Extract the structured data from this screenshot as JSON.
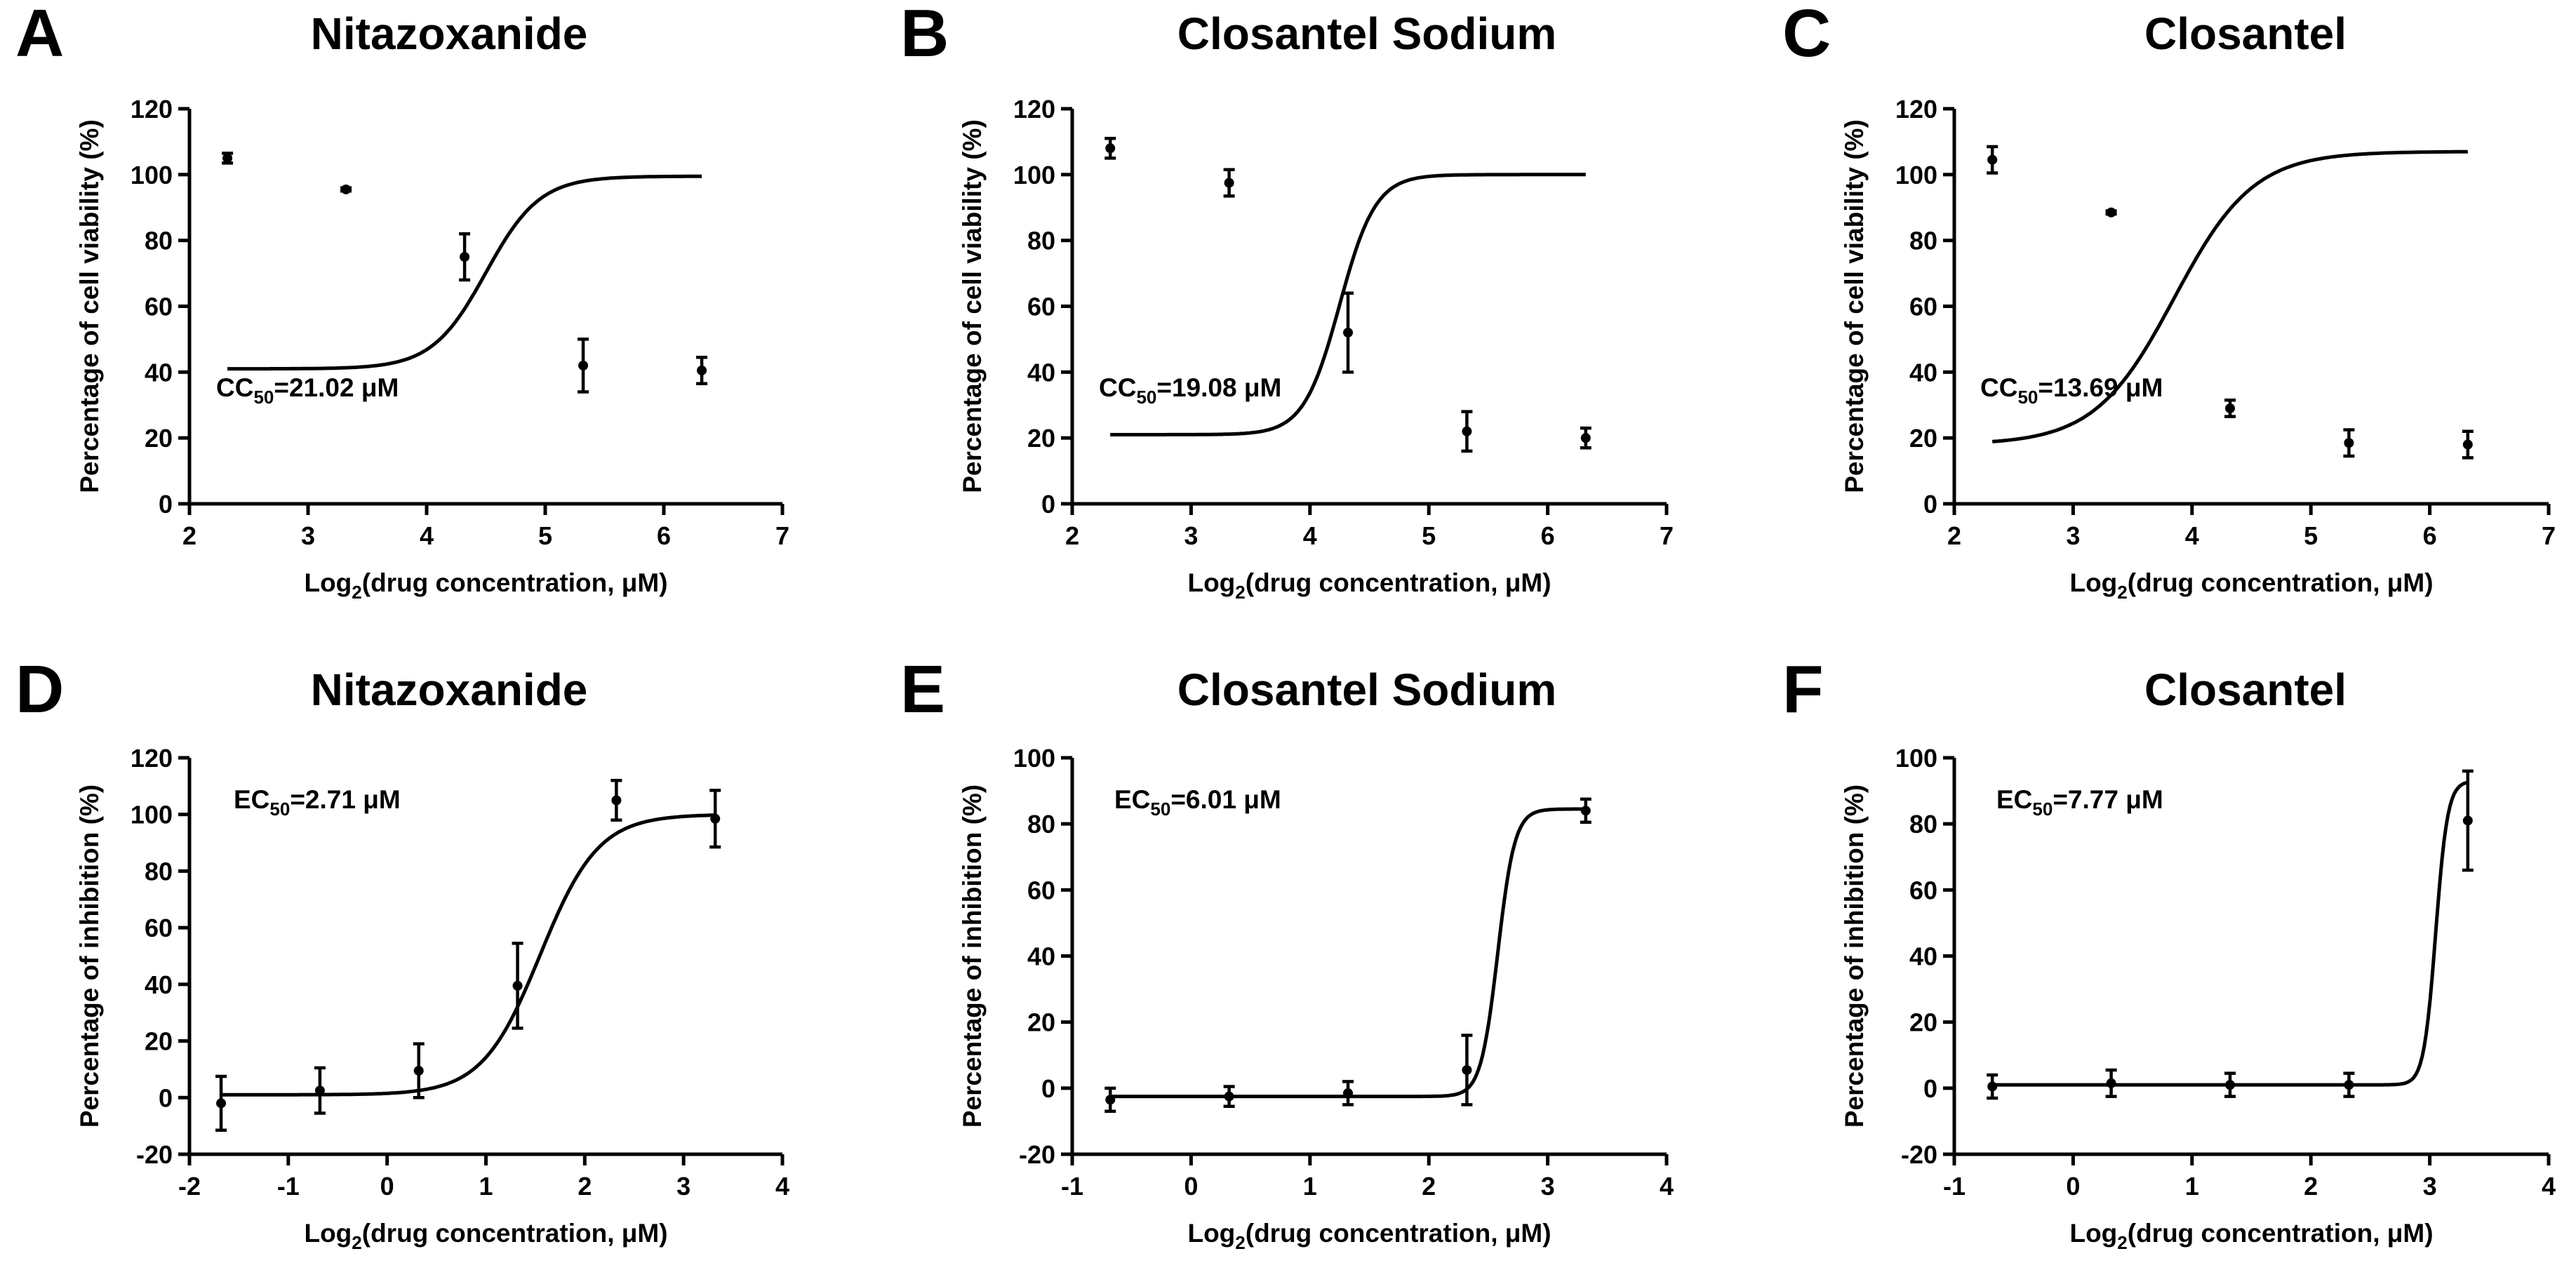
{
  "chart_data": [
    {
      "letter": "A",
      "type": "scatter",
      "title": "Nitazoxanide",
      "xlabel_main": "Log",
      "xlabel_sub": "2",
      "xlabel_rest": "(drug concentration, μM)",
      "ylabel": "Percentage of cell viability (%)",
      "xlim": [
        2,
        7
      ],
      "ylim": [
        0,
        120
      ],
      "xticks": [
        2,
        3,
        4,
        5,
        6,
        7
      ],
      "yticks": [
        0,
        20,
        40,
        60,
        80,
        100,
        120
      ],
      "annotation": {
        "prefix": "CC",
        "sub": "50",
        "rest": "=21.02 μM",
        "anchor": "left-middle"
      },
      "x": [
        2.32,
        3.32,
        4.32,
        5.32,
        6.32
      ],
      "y": [
        105,
        95.5,
        75,
        42,
        40.5
      ],
      "err": [
        1.5,
        0.5,
        7,
        8,
        4
      ],
      "fit": {
        "kind": "sigmoid",
        "bottom": 41,
        "top": 99.5,
        "mid": 4.5,
        "slope": 4.4,
        "xmin": 2.32,
        "xmax": 6.32
      }
    },
    {
      "letter": "B",
      "type": "scatter",
      "title": "Closantel Sodium",
      "xlabel_main": "Log",
      "xlabel_sub": "2",
      "xlabel_rest": "(drug concentration, μM)",
      "ylabel": "Percentage of cell viability (%)",
      "xlim": [
        2,
        7
      ],
      "ylim": [
        0,
        120
      ],
      "xticks": [
        2,
        3,
        4,
        5,
        6,
        7
      ],
      "yticks": [
        0,
        20,
        40,
        60,
        80,
        100,
        120
      ],
      "annotation": {
        "prefix": "CC",
        "sub": "50",
        "rest": "=19.08 μM",
        "anchor": "left-middle"
      },
      "x": [
        2.32,
        3.32,
        4.32,
        5.32,
        6.32
      ],
      "y": [
        108,
        97.5,
        52,
        22,
        20
      ],
      "err": [
        3,
        4,
        12,
        6,
        3
      ],
      "fit": {
        "kind": "sigmoid",
        "bottom": 21,
        "top": 100,
        "mid": 4.25,
        "slope": 6.6,
        "xmin": 2.32,
        "xmax": 6.32
      }
    },
    {
      "letter": "C",
      "type": "scatter",
      "title": "Closantel",
      "xlabel_main": "Log",
      "xlabel_sub": "2",
      "xlabel_rest": "(drug concentration, μM)",
      "ylabel": "Percentage of cell viability (%)",
      "xlim": [
        2,
        7
      ],
      "ylim": [
        0,
        120
      ],
      "xticks": [
        2,
        3,
        4,
        5,
        6,
        7
      ],
      "yticks": [
        0,
        20,
        40,
        60,
        80,
        100,
        120
      ],
      "annotation": {
        "prefix": "CC",
        "sub": "50",
        "rest": "=13.69 μM",
        "anchor": "left-middle"
      },
      "x": [
        2.32,
        3.32,
        4.32,
        5.32,
        6.32
      ],
      "y": [
        104.5,
        88.5,
        29,
        18.5,
        18
      ],
      "err": [
        4,
        0.5,
        2.5,
        4,
        4
      ],
      "fit": {
        "kind": "sigmoid",
        "bottom": 18,
        "top": 107,
        "mid": 3.85,
        "slope": 3.0,
        "xmin": 2.32,
        "xmax": 6.32
      }
    },
    {
      "letter": "D",
      "type": "scatter",
      "title": "Nitazoxanide",
      "xlabel_main": "Log",
      "xlabel_sub": "2",
      "xlabel_rest": "(drug concentration, μM)",
      "ylabel": "Percentage of inhibition (%)",
      "xlim": [
        -2,
        4
      ],
      "ylim": [
        -20,
        120
      ],
      "xticks": [
        -2,
        -1,
        0,
        1,
        2,
        3,
        4
      ],
      "yticks": [
        -20,
        0,
        20,
        40,
        60,
        80,
        100,
        120
      ],
      "annotation": {
        "prefix": "EC",
        "sub": "50",
        "rest": "=2.71 μM",
        "anchor": "left-middle"
      },
      "x": [
        -1.68,
        -0.68,
        0.32,
        1.32,
        2.32,
        3.32
      ],
      "y": [
        -2,
        2.5,
        9.5,
        39.5,
        105,
        98.5
      ],
      "err": [
        9.5,
        8,
        9.5,
        15,
        7,
        10
      ],
      "fit": {
        "kind": "sigmoid",
        "bottom": 1,
        "top": 100,
        "mid": 1.55,
        "slope": 3.4,
        "xmin": -1.68,
        "xmax": 3.32
      }
    },
    {
      "letter": "E",
      "type": "scatter",
      "title": "Closantel Sodium",
      "xlabel_main": "Log",
      "xlabel_sub": "2",
      "xlabel_rest": "(drug concentration, μM)",
      "ylabel": "Percentage of inhibition (%)",
      "xlim": [
        -1,
        4
      ],
      "ylim": [
        -20,
        100
      ],
      "xticks": [
        -1,
        0,
        1,
        2,
        3,
        4
      ],
      "yticks": [
        -20,
        0,
        20,
        40,
        60,
        80,
        100
      ],
      "annotation": {
        "prefix": "EC",
        "sub": "50",
        "rest": "=6.01 μM",
        "anchor": "left-middle"
      },
      "x": [
        -0.68,
        0.32,
        1.32,
        2.32,
        3.32
      ],
      "y": [
        -3.5,
        -2.5,
        -1.5,
        5.5,
        84
      ],
      "err": [
        3.5,
        3,
        3.5,
        10.5,
        3.5
      ],
      "fit": {
        "kind": "sigmoid",
        "bottom": -2.5,
        "top": 84.5,
        "mid": 2.58,
        "slope": 14,
        "xmin": -0.68,
        "xmax": 3.32
      }
    },
    {
      "letter": "F",
      "type": "scatter",
      "title": "Closantel",
      "xlabel_main": "Log",
      "xlabel_sub": "2",
      "xlabel_rest": "(drug concentration, μM)",
      "ylabel": "Percentage of inhibition (%)",
      "xlim": [
        -1,
        4
      ],
      "ylim": [
        -20,
        100
      ],
      "xticks": [
        -1,
        0,
        1,
        2,
        3,
        4
      ],
      "yticks": [
        -20,
        0,
        20,
        40,
        60,
        80,
        100
      ],
      "annotation": {
        "prefix": "EC",
        "sub": "50",
        "rest": "=7.77 μM",
        "anchor": "left-middle"
      },
      "x": [
        -0.68,
        0.32,
        1.32,
        2.32,
        3.32
      ],
      "y": [
        0.5,
        1.5,
        1,
        1,
        81
      ],
      "err": [
        3.5,
        4,
        3.5,
        3.5,
        15
      ],
      "fit": {
        "kind": "sigmoid",
        "bottom": 1,
        "top": 93,
        "mid": 3.05,
        "slope": 20,
        "xmin": -0.68,
        "xmax": 3.32
      }
    }
  ]
}
